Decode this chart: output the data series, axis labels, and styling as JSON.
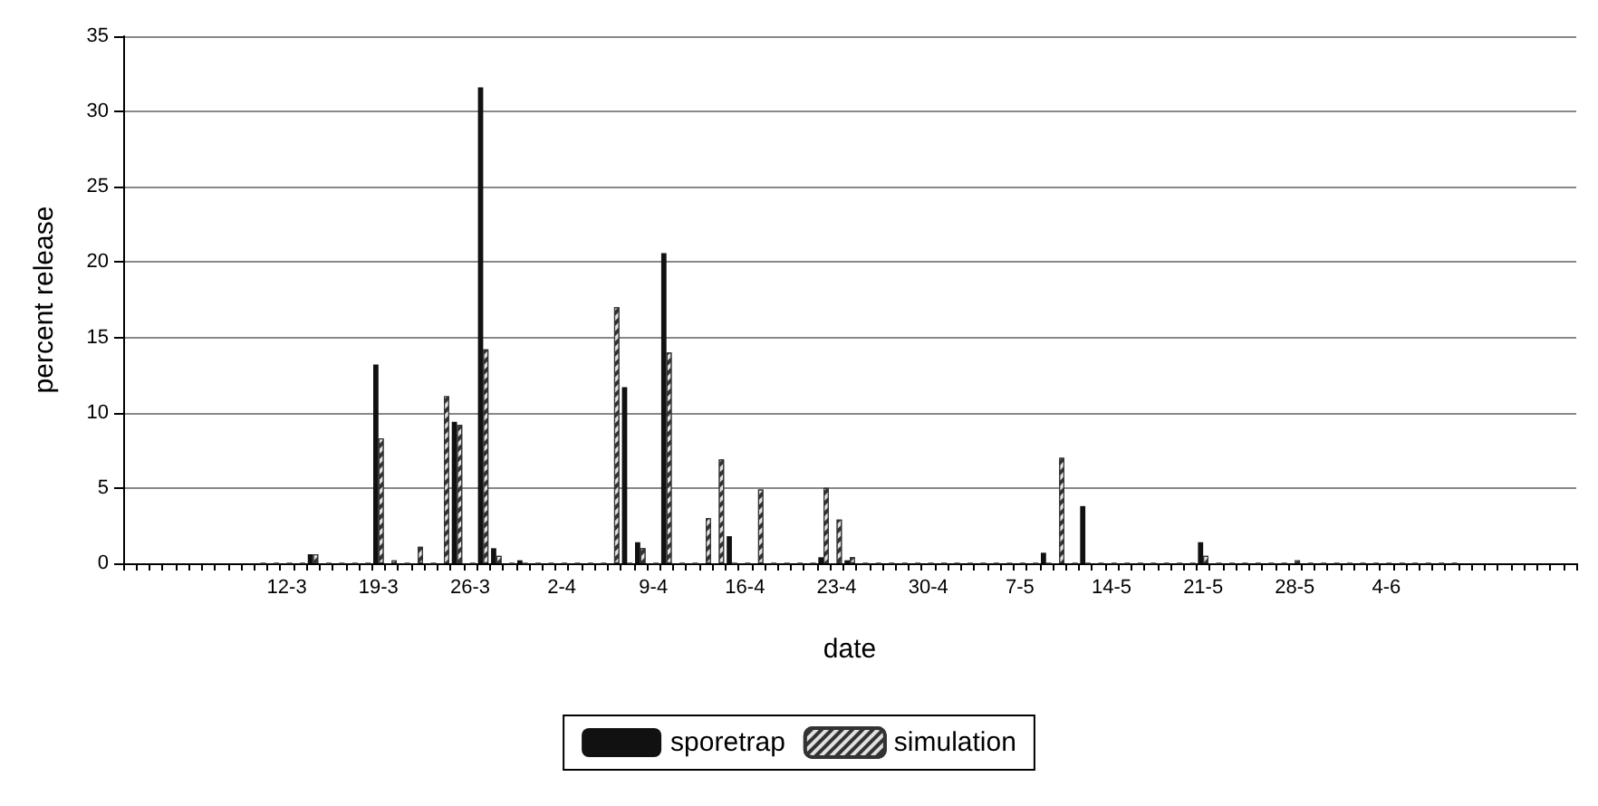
{
  "chart_data": {
    "type": "bar",
    "xlabel": "date",
    "ylabel": "percent release",
    "categories": [
      null,
      null,
      null,
      null,
      null,
      null,
      null,
      null,
      null,
      null,
      null,
      null,
      "12-3",
      null,
      null,
      null,
      null,
      null,
      null,
      "19-3",
      null,
      null,
      null,
      null,
      null,
      null,
      "26-3",
      null,
      null,
      null,
      null,
      null,
      null,
      "2-4",
      null,
      null,
      null,
      null,
      null,
      null,
      "9-4",
      null,
      null,
      null,
      null,
      null,
      null,
      "16-4",
      null,
      null,
      null,
      null,
      null,
      null,
      "23-4",
      null,
      null,
      null,
      null,
      null,
      null,
      "30-4",
      null,
      null,
      null,
      null,
      null,
      null,
      "7-5",
      null,
      null,
      null,
      null,
      null,
      null,
      "14-5",
      null,
      null,
      null,
      null,
      null,
      null,
      "21-5",
      null,
      null,
      null,
      null,
      null,
      null,
      "28-5",
      null,
      null,
      null,
      null,
      null,
      null,
      "4-6",
      null,
      null,
      null,
      null,
      null,
      null,
      null,
      null,
      null,
      null,
      null,
      null,
      null,
      null
    ],
    "series": [
      {
        "name": "sporetrap",
        "color": "#111111",
        "values": [
          null,
          null,
          null,
          null,
          null,
          null,
          null,
          null,
          null,
          null,
          0,
          0,
          0,
          0,
          0.6,
          0,
          0,
          0,
          0,
          13.2,
          0,
          0,
          0,
          0,
          0,
          9.4,
          0,
          31.6,
          1.0,
          0,
          0.2,
          0,
          0,
          0,
          0,
          0,
          0,
          0,
          11.7,
          1.4,
          0,
          20.6,
          0,
          0,
          0,
          0,
          1.8,
          0,
          0,
          0,
          0,
          0,
          0,
          0.4,
          0,
          0.2,
          0,
          0,
          0,
          0,
          0,
          0,
          0,
          0,
          0,
          0,
          0,
          0,
          0,
          0,
          0.7,
          0,
          0,
          3.8,
          0,
          0,
          0,
          0,
          0,
          0,
          0,
          0,
          1.4,
          0,
          0,
          0,
          0,
          0,
          0,
          0,
          0,
          0,
          0,
          0,
          0,
          0,
          0,
          0,
          0,
          0,
          0,
          0,
          null,
          null,
          null,
          null,
          null,
          null,
          null,
          null,
          null
        ]
      },
      {
        "name": "simulation",
        "color": "#333333",
        "values": [
          null,
          null,
          null,
          null,
          null,
          null,
          null,
          null,
          null,
          null,
          0,
          0,
          0,
          0,
          0.6,
          0,
          0,
          0,
          0,
          8.3,
          0.2,
          0,
          1.1,
          0,
          11.1,
          9.2,
          0,
          14.2,
          0.5,
          0,
          0,
          0,
          0,
          0,
          0,
          0,
          0,
          17.0,
          0,
          1.0,
          0,
          14.0,
          0,
          0,
          3.0,
          6.9,
          0,
          0,
          4.9,
          0,
          0,
          0,
          0,
          5.0,
          2.9,
          0.4,
          0,
          0,
          0,
          0,
          0,
          0,
          0,
          0,
          0,
          0,
          0,
          0,
          0,
          0,
          0,
          7.0,
          0,
          0,
          0,
          0,
          0,
          0,
          0,
          0,
          0,
          0,
          0.5,
          0,
          0,
          0,
          0,
          0,
          0,
          0.2,
          0,
          0,
          0,
          0,
          0,
          0,
          0,
          0,
          0,
          0,
          0,
          0,
          null,
          null,
          null,
          null,
          null,
          null,
          null,
          null,
          null
        ]
      }
    ],
    "ylim": [
      0,
      35
    ],
    "yticks": [
      0,
      5,
      10,
      15,
      20,
      25,
      30,
      35
    ],
    "grid": "y",
    "legend": "bottom"
  }
}
